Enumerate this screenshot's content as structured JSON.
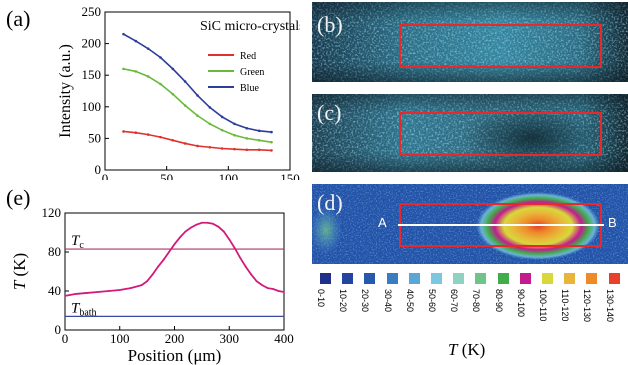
{
  "panels": {
    "a": "(a)",
    "b": "(b)",
    "c": "(c)",
    "d": "(d)",
    "e": "(e)"
  },
  "map_labels": {
    "start": "A",
    "end": "B"
  },
  "colors": {
    "red": "#e0302c",
    "green": "#6ab93a",
    "blue": "#2c3e9a",
    "magenta": "#d21a7d",
    "tc_line": "#b0306a",
    "tbath_line": "#3a4aa0",
    "roi_box": "#e8282a"
  },
  "chart_data": [
    {
      "type": "line",
      "title": "SiC micro-crystals",
      "xlabel_prefix": "T",
      "xlabel_suffix": " (K)",
      "ylabel": "Intensity (a.u.)",
      "xlim": [
        0,
        150
      ],
      "ylim": [
        0,
        250
      ],
      "xticks": [
        0,
        50,
        100,
        150
      ],
      "yticks": [
        0,
        50,
        100,
        150,
        200,
        250
      ],
      "legend_position": "right",
      "series": [
        {
          "name": "Red",
          "color": "#e0302c",
          "x": [
            15,
            25,
            35,
            45,
            55,
            65,
            75,
            85,
            95,
            105,
            115,
            125,
            135
          ],
          "y": [
            61,
            59,
            56,
            52,
            47,
            42,
            38,
            36,
            34,
            33,
            32,
            32,
            31
          ]
        },
        {
          "name": "Green",
          "color": "#6ab93a",
          "x": [
            15,
            25,
            35,
            45,
            55,
            65,
            75,
            85,
            95,
            105,
            115,
            125,
            135
          ],
          "y": [
            160,
            156,
            148,
            136,
            120,
            102,
            86,
            73,
            63,
            55,
            50,
            47,
            44
          ]
        },
        {
          "name": "Blue",
          "color": "#2c3e9a",
          "x": [
            15,
            25,
            35,
            45,
            55,
            65,
            75,
            85,
            95,
            105,
            115,
            125,
            135
          ],
          "y": [
            215,
            204,
            192,
            178,
            160,
            140,
            118,
            99,
            84,
            73,
            66,
            62,
            60
          ]
        }
      ]
    },
    {
      "type": "line",
      "xlabel": "Position (μm)",
      "ylabel_prefix": "T",
      "ylabel_suffix": " (K)",
      "xlim": [
        0,
        400
      ],
      "ylim": [
        0,
        120
      ],
      "xticks": [
        0,
        100,
        200,
        300,
        400
      ],
      "yticks": [
        0,
        40,
        80,
        120
      ],
      "reference_lines": [
        {
          "label_main": "T",
          "label_sub": "c",
          "y": 83,
          "color": "#b0306a"
        },
        {
          "label_main": "T",
          "label_sub": "bath",
          "y": 14,
          "color": "#3a4aa0"
        }
      ],
      "series": [
        {
          "color": "#d21a7d",
          "x": [
            0,
            20,
            40,
            60,
            80,
            100,
            120,
            140,
            150,
            160,
            170,
            180,
            190,
            200,
            210,
            220,
            230,
            240,
            250,
            260,
            270,
            280,
            290,
            300,
            310,
            320,
            330,
            340,
            350,
            360,
            370,
            380,
            390,
            400
          ],
          "y": [
            35,
            37,
            38,
            39,
            40,
            41,
            43,
            46,
            50,
            57,
            65,
            72,
            80,
            88,
            95,
            101,
            105,
            108,
            110,
            110,
            109,
            106,
            101,
            93,
            84,
            74,
            65,
            57,
            50,
            46,
            43,
            42,
            40,
            39
          ]
        }
      ]
    },
    {
      "type": "heatmap",
      "legend_title_prefix": "T",
      "legend_title_suffix": " (K)",
      "legend": [
        {
          "label": "0-10",
          "color": "#1f2f8a"
        },
        {
          "label": "10-20",
          "color": "#23459f"
        },
        {
          "label": "20-30",
          "color": "#2658ae"
        },
        {
          "label": "30-40",
          "color": "#3a7cc2"
        },
        {
          "label": "40-50",
          "color": "#5aa6d6"
        },
        {
          "label": "50-60",
          "color": "#7cc6e0"
        },
        {
          "label": "60-70",
          "color": "#8fd2c2"
        },
        {
          "label": "70-80",
          "color": "#6fc48a"
        },
        {
          "label": "80-90",
          "color": "#3fae4a"
        },
        {
          "label": "90-100",
          "color": "#c21c8f"
        },
        {
          "label": "100-110",
          "color": "#d8d83a"
        },
        {
          "label": "110-120",
          "color": "#e9b43a"
        },
        {
          "label": "120-130",
          "color": "#ee8a2a"
        },
        {
          "label": "130-140",
          "color": "#e8402a"
        }
      ]
    }
  ]
}
